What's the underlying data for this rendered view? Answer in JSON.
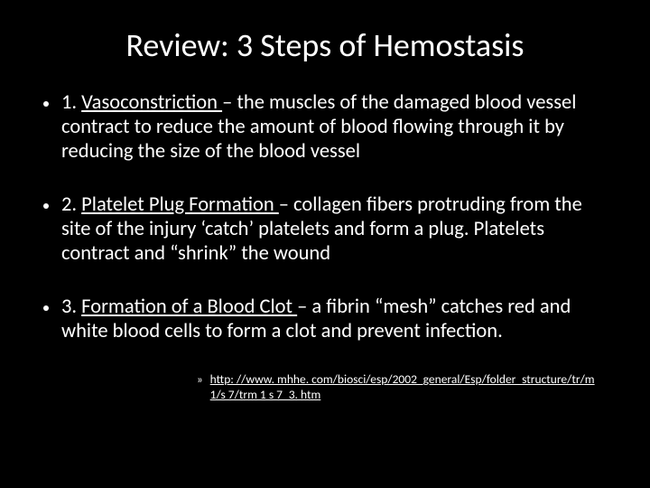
{
  "slide": {
    "background_color": "#000000",
    "text_color": "#ffffff",
    "title": "Review: 3 Steps of Hemostasis",
    "title_fontsize": 36,
    "body_fontsize": 22.5,
    "link_fontsize": 13.5,
    "bullets": [
      {
        "num": "1. ",
        "term": "Vasoconstriction ",
        "rest": "– the muscles of the damaged blood vessel contract to reduce the amount of blood flowing through it by reducing the size of the blood vessel"
      },
      {
        "num": "2. ",
        "term": "Platelet Plug Formation ",
        "rest": "– collagen fibers protruding from the site of the injury ‘catch’ platelets and form a plug.  Platelets contract and “shrink” the wound"
      },
      {
        "num": "3. ",
        "term": "Formation of a Blood Clot ",
        "rest": "– a fibrin “mesh” catches red and white blood cells to form a clot and prevent infection."
      }
    ],
    "link_marker": "»",
    "link_text": "http: //www. mhhe. com/biosci/esp/2002_general/Esp/folder_structure/tr/m 1/s 7/trm 1 s 7_3. htm"
  }
}
